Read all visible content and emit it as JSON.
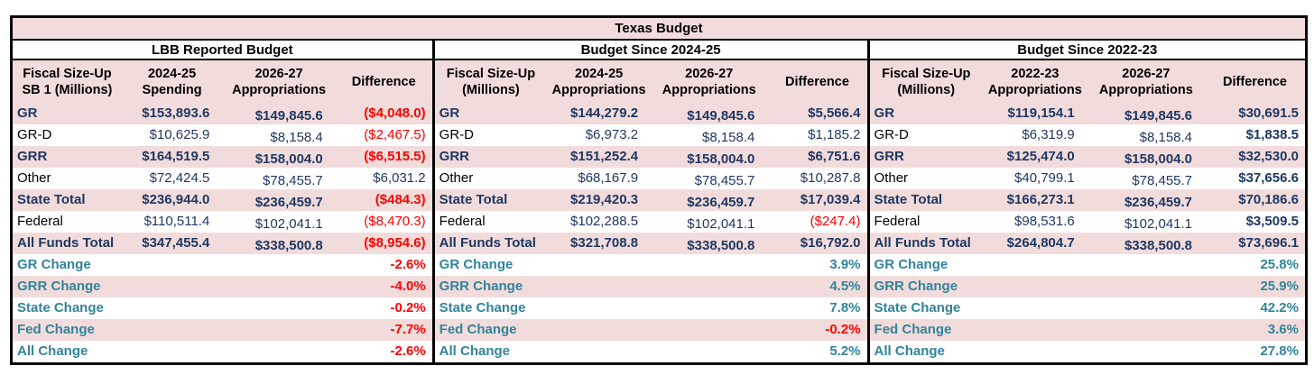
{
  "chart_data": {
    "type": "table",
    "title": "Texas Budget",
    "colors": {
      "band_pink": "#f2dcdb",
      "band_white": "#ffffff",
      "value_navy": "#1f3864",
      "change_teal": "#31849b",
      "negative_red": "#ff0000",
      "border_black": "#000000"
    },
    "sections": [
      {
        "header": "LBB Reported Budget",
        "columns": [
          {
            "l1": "Fiscal Size-Up",
            "l2": "SB 1 (Millions)"
          },
          {
            "l1": "2024-25",
            "l2": "Spending"
          },
          {
            "l1": "2026-27",
            "l2": "Appropriations"
          },
          {
            "l1": "Difference",
            "l2": ""
          }
        ],
        "rows": [
          {
            "label": "GR",
            "bold": true,
            "v1": "$153,893.6",
            "v2": "$149,845.6",
            "d": "($4,048.0)",
            "dneg": true,
            "dbold": true
          },
          {
            "label": "GR-D",
            "bold": false,
            "v1": "$10,625.9",
            "v2": "$8,158.4",
            "d": "($2,467.5)",
            "dneg": true,
            "dbold": false
          },
          {
            "label": "GRR",
            "bold": true,
            "v1": "$164,519.5",
            "v2": "$158,004.0",
            "d": "($6,515.5)",
            "dneg": true,
            "dbold": true
          },
          {
            "label": "Other",
            "bold": false,
            "v1": "$72,424.5",
            "v2": "$78,455.7",
            "d": "$6,031.2",
            "dneg": false,
            "dbold": false
          },
          {
            "label": "State Total",
            "bold": true,
            "v1": "$236,944.0",
            "v2": "$236,459.7",
            "d": "($484.3)",
            "dneg": true,
            "dbold": true
          },
          {
            "label": "Federal",
            "bold": false,
            "v1": "$110,511.4",
            "v2": "$102,041.1",
            "d": "($8,470.3)",
            "dneg": true,
            "dbold": false
          },
          {
            "label": "All Funds Total",
            "bold": true,
            "v1": "$347,455.4",
            "v2": "$338,500.8",
            "d": "($8,954.6)",
            "dneg": true,
            "dbold": true
          }
        ],
        "changes": [
          {
            "label": "GR Change",
            "value": "-2.6%",
            "neg": true
          },
          {
            "label": "GRR Change",
            "value": "-4.0%",
            "neg": true
          },
          {
            "label": "State Change",
            "value": "-0.2%",
            "neg": true
          },
          {
            "label": "Fed Change",
            "value": "-7.7%",
            "neg": true
          },
          {
            "label": "All Change",
            "value": "-2.6%",
            "neg": true
          }
        ]
      },
      {
        "header": "Budget Since 2024-25",
        "columns": [
          {
            "l1": "Fiscal Size-Up",
            "l2": "(Millions)"
          },
          {
            "l1": "2024-25",
            "l2": "Appropriations"
          },
          {
            "l1": "2026-27",
            "l2": "Appropriations"
          },
          {
            "l1": "Difference",
            "l2": ""
          }
        ],
        "rows": [
          {
            "label": "GR",
            "bold": true,
            "v1": "$144,279.2",
            "v2": "$149,845.6",
            "d": "$5,566.4",
            "dneg": false,
            "dbold": true
          },
          {
            "label": "GR-D",
            "bold": false,
            "v1": "$6,973.2",
            "v2": "$8,158.4",
            "d": "$1,185.2",
            "dneg": false,
            "dbold": false
          },
          {
            "label": "GRR",
            "bold": true,
            "v1": "$151,252.4",
            "v2": "$158,004.0",
            "d": "$6,751.6",
            "dneg": false,
            "dbold": true
          },
          {
            "label": "Other",
            "bold": false,
            "v1": "$68,167.9",
            "v2": "$78,455.7",
            "d": "$10,287.8",
            "dneg": false,
            "dbold": false
          },
          {
            "label": "State Total",
            "bold": true,
            "v1": "$219,420.3",
            "v2": "$236,459.7",
            "d": "$17,039.4",
            "dneg": false,
            "dbold": true
          },
          {
            "label": "Federal",
            "bold": false,
            "v1": "$102,288.5",
            "v2": "$102,041.1",
            "d": "($247.4)",
            "dneg": true,
            "dbold": false
          },
          {
            "label": "All Funds Total",
            "bold": true,
            "v1": "$321,708.8",
            "v2": "$338,500.8",
            "d": "$16,792.0",
            "dneg": false,
            "dbold": true
          }
        ],
        "changes": [
          {
            "label": "GR Change",
            "value": "3.9%",
            "neg": false
          },
          {
            "label": "GRR Change",
            "value": "4.5%",
            "neg": false
          },
          {
            "label": "State Change",
            "value": "7.8%",
            "neg": false
          },
          {
            "label": "Fed Change",
            "value": "-0.2%",
            "neg": true
          },
          {
            "label": "All Change",
            "value": "5.2%",
            "neg": false
          }
        ]
      },
      {
        "header": "Budget Since 2022-23",
        "columns": [
          {
            "l1": "Fiscal Size-Up",
            "l2": "(Millions)"
          },
          {
            "l1": "2022-23",
            "l2": "Appropriations"
          },
          {
            "l1": "2026-27",
            "l2": "Appropriations"
          },
          {
            "l1": "Difference",
            "l2": ""
          }
        ],
        "rows": [
          {
            "label": "GR",
            "bold": true,
            "v1": "$119,154.1",
            "v2": "$149,845.6",
            "d": "$30,691.5",
            "dneg": false,
            "dbold": true
          },
          {
            "label": "GR-D",
            "bold": false,
            "v1": "$6,319.9",
            "v2": "$8,158.4",
            "d": "$1,838.5",
            "dneg": false,
            "dbold": true
          },
          {
            "label": "GRR",
            "bold": true,
            "v1": "$125,474.0",
            "v2": "$158,004.0",
            "d": "$32,530.0",
            "dneg": false,
            "dbold": true
          },
          {
            "label": "Other",
            "bold": false,
            "v1": "$40,799.1",
            "v2": "$78,455.7",
            "d": "$37,656.6",
            "dneg": false,
            "dbold": true
          },
          {
            "label": "State Total",
            "bold": true,
            "v1": "$166,273.1",
            "v2": "$236,459.7",
            "d": "$70,186.6",
            "dneg": false,
            "dbold": true
          },
          {
            "label": "Federal",
            "bold": false,
            "v1": "$98,531.6",
            "v2": "$102,041.1",
            "d": "$3,509.5",
            "dneg": false,
            "dbold": true
          },
          {
            "label": "All Funds Total",
            "bold": true,
            "v1": "$264,804.7",
            "v2": "$338,500.8",
            "d": "$73,696.1",
            "dneg": false,
            "dbold": true
          }
        ],
        "changes": [
          {
            "label": "GR Change",
            "value": "25.8%",
            "neg": false
          },
          {
            "label": "GRR Change",
            "value": "25.9%",
            "neg": false
          },
          {
            "label": "State Change",
            "value": "42.2%",
            "neg": false
          },
          {
            "label": "Fed Change",
            "value": "3.6%",
            "neg": false
          },
          {
            "label": "All Change",
            "value": "27.8%",
            "neg": false
          }
        ]
      }
    ]
  }
}
